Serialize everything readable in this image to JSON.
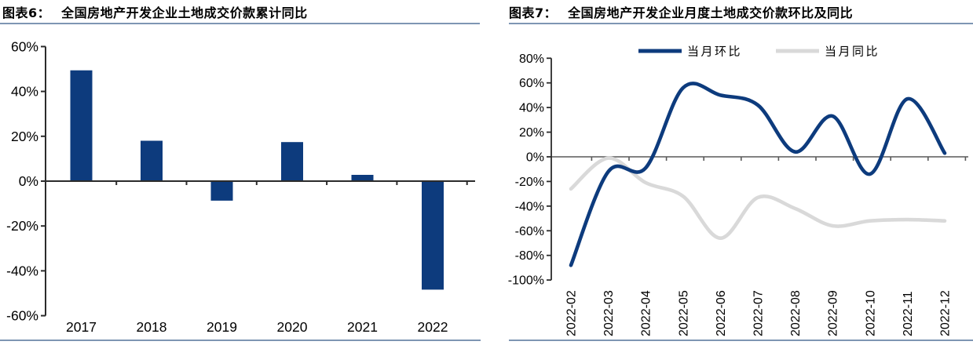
{
  "colors": {
    "navy": "#0d3b7d",
    "light_gray_line": "#d9d9d9",
    "axis_dark": "#2b2b2b",
    "axis_gray": "#595959",
    "rule_steel_blue": "#7e96b3",
    "text_black": "#000000"
  },
  "panels": {
    "left": {
      "title_tag": "图表6：",
      "title_text": "全国房地产开发企业土地成交价款累计同比",
      "chart_data": {
        "type": "bar",
        "title": "全国房地产开发企业土地成交价款累计同比",
        "categories": [
          "2017",
          "2018",
          "2019",
          "2020",
          "2021",
          "2022"
        ],
        "values": [
          49.4,
          18.0,
          -8.7,
          17.4,
          2.8,
          -48.4
        ],
        "unit": "%",
        "xlabel": "",
        "ylabel": "",
        "ylim": [
          -60,
          60
        ],
        "ytick_values": [
          60,
          40,
          20,
          0,
          -20,
          -40,
          -60
        ],
        "ytick_labels": [
          "60%",
          "40%",
          "20%",
          "0%",
          "-20%",
          "-40%",
          "-60%"
        ],
        "grid": false,
        "bar_color": "#0d3b7d"
      }
    },
    "right": {
      "title_tag": "图表7：",
      "title_text": "全国房地产开发企业月度土地成交价款环比及同比",
      "chart_data": {
        "type": "line",
        "title": "全国房地产开发企业月度土地成交价款环比及同比",
        "x": [
          "2022-02",
          "2022-03",
          "2022-04",
          "2022-05",
          "2022-06",
          "2022-07",
          "2022-08",
          "2022-09",
          "2022-10",
          "2022-11",
          "2022-12"
        ],
        "series": [
          {
            "name": "当月环比",
            "color": "#0d3b7d",
            "values": [
              -88,
              -12,
              -9,
              56,
              50,
              42,
              4,
              33,
              -14,
              47,
              3
            ]
          },
          {
            "name": "当月同比",
            "color": "#d9d9d9",
            "values": [
              -26,
              -1,
              -21,
              -32,
              -66,
              -33,
              -42,
              -56,
              -52,
              -51,
              -52
            ]
          }
        ],
        "unit": "%",
        "xlabel": "",
        "ylabel": "",
        "ylim": [
          -100,
          80
        ],
        "ytick_values": [
          80,
          60,
          40,
          20,
          0,
          -20,
          -40,
          -60,
          -80,
          -100
        ],
        "ytick_labels": [
          "80%",
          "60%",
          "40%",
          "20%",
          "0%",
          "-20%",
          "-40%",
          "-60%",
          "-80%",
          "-100%"
        ],
        "grid": false,
        "legend_position": "top",
        "smooth": true
      }
    }
  }
}
